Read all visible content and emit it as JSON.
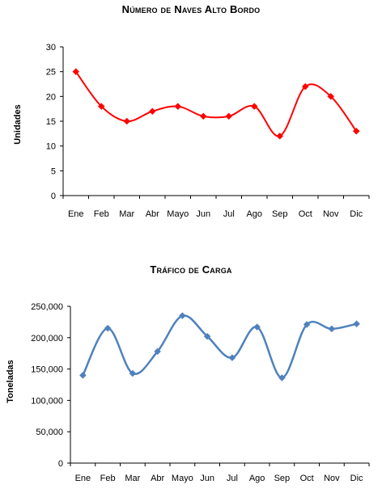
{
  "chart_data": [
    {
      "type": "line",
      "title": "Número de Naves Alto Bordo",
      "xlabel": "",
      "ylabel": "Unidades",
      "categories": [
        "Ene",
        "Feb",
        "Mar",
        "Abr",
        "Mayo",
        "Jun",
        "Jul",
        "Ago",
        "Sep",
        "Oct",
        "Nov",
        "Dic"
      ],
      "series": [
        {
          "values": [
            25,
            18,
            15,
            17,
            18,
            16,
            16,
            18,
            12,
            22,
            20,
            13
          ],
          "color": "#ff0000",
          "marker": "diamond"
        }
      ],
      "ylim": [
        0,
        30
      ],
      "yticks": [
        0,
        5,
        10,
        15,
        20,
        25,
        30
      ],
      "ytick_labels": [
        "0",
        "5",
        "10",
        "15",
        "20",
        "25",
        "30"
      ],
      "grid": false,
      "smooth": true
    },
    {
      "type": "line",
      "title": "Tráfico de Carga",
      "xlabel": "",
      "ylabel": "Toneladas",
      "categories": [
        "Ene",
        "Feb",
        "Mar",
        "Abr",
        "Mayo",
        "Jun",
        "Jul",
        "Ago",
        "Sep",
        "Oct",
        "Nov",
        "Dic"
      ],
      "series": [
        {
          "values": [
            140000,
            215000,
            143000,
            178000,
            235000,
            202000,
            168000,
            217000,
            136000,
            221000,
            214000,
            222000
          ],
          "color": "#4f81bd",
          "marker": "diamond"
        }
      ],
      "ylim": [
        0,
        250000
      ],
      "yticks": [
        0,
        50000,
        100000,
        150000,
        200000,
        250000
      ],
      "ytick_labels": [
        "0",
        "50,000",
        "100,000",
        "150,000",
        "200,000",
        "250,000"
      ],
      "grid": false,
      "smooth": true
    }
  ]
}
